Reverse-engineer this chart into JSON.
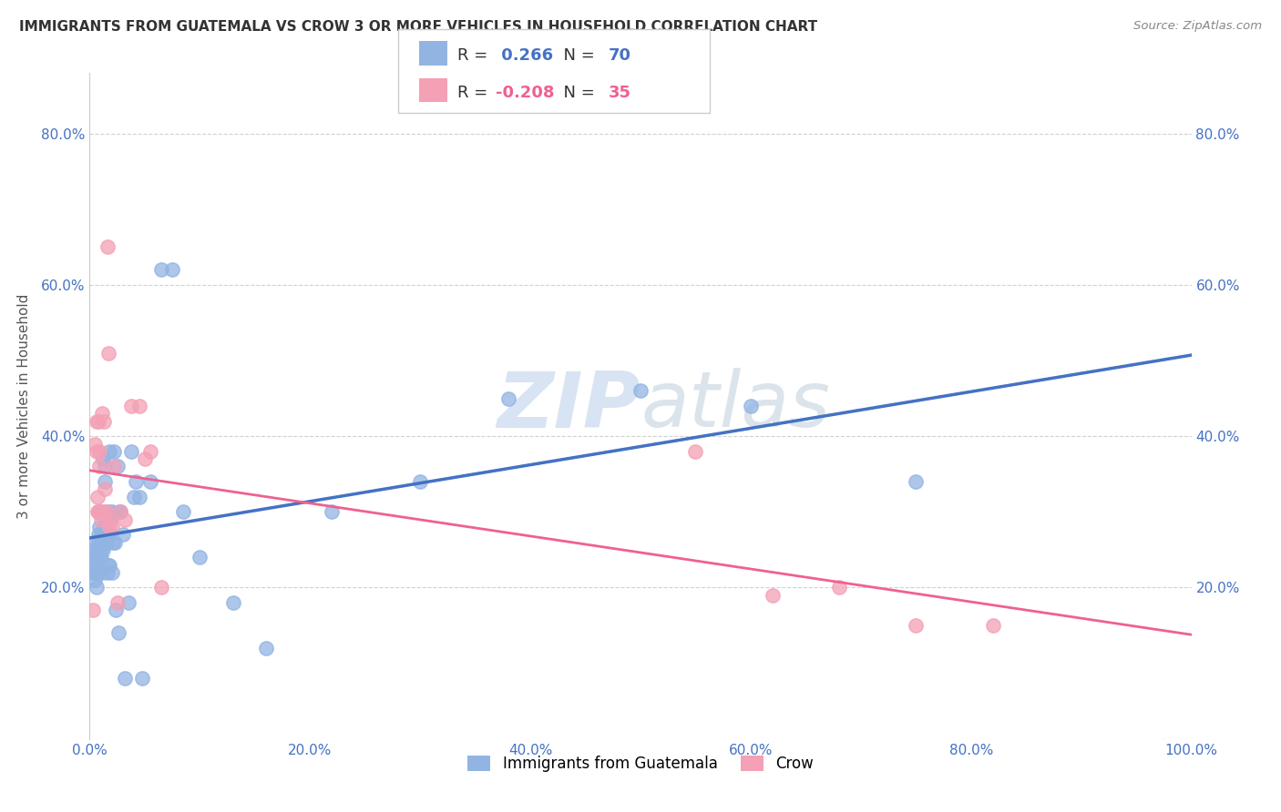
{
  "title": "IMMIGRANTS FROM GUATEMALA VS CROW 3 OR MORE VEHICLES IN HOUSEHOLD CORRELATION CHART",
  "source": "Source: ZipAtlas.com",
  "ylabel": "3 or more Vehicles in Household",
  "legend_blue_label": "Immigrants from Guatemala",
  "legend_pink_label": "Crow",
  "r_blue": 0.266,
  "n_blue": 70,
  "r_pink": -0.208,
  "n_pink": 35,
  "blue_color": "#92b4e3",
  "pink_color": "#f4a0b5",
  "blue_line_color": "#4472c4",
  "pink_line_color": "#f06090",
  "trendline_dash_color": "#90b0e0",
  "background_color": "#ffffff",
  "grid_color": "#cccccc",
  "blue_scatter_x": [
    0.001,
    0.002,
    0.003,
    0.004,
    0.005,
    0.005,
    0.006,
    0.006,
    0.006,
    0.007,
    0.007,
    0.007,
    0.008,
    0.008,
    0.008,
    0.009,
    0.009,
    0.009,
    0.01,
    0.01,
    0.01,
    0.011,
    0.011,
    0.012,
    0.012,
    0.013,
    0.013,
    0.014,
    0.014,
    0.015,
    0.015,
    0.016,
    0.016,
    0.017,
    0.017,
    0.018,
    0.018,
    0.019,
    0.019,
    0.02,
    0.02,
    0.021,
    0.022,
    0.023,
    0.024,
    0.025,
    0.026,
    0.027,
    0.028,
    0.03,
    0.032,
    0.035,
    0.038,
    0.04,
    0.042,
    0.045,
    0.048,
    0.055,
    0.065,
    0.075,
    0.085,
    0.1,
    0.13,
    0.16,
    0.22,
    0.3,
    0.38,
    0.5,
    0.6,
    0.75
  ],
  "blue_scatter_y": [
    0.24,
    0.22,
    0.25,
    0.23,
    0.21,
    0.26,
    0.22,
    0.24,
    0.2,
    0.25,
    0.23,
    0.22,
    0.25,
    0.27,
    0.26,
    0.24,
    0.28,
    0.3,
    0.27,
    0.25,
    0.24,
    0.22,
    0.26,
    0.37,
    0.25,
    0.28,
    0.3,
    0.34,
    0.36,
    0.26,
    0.28,
    0.27,
    0.22,
    0.3,
    0.23,
    0.23,
    0.38,
    0.27,
    0.29,
    0.22,
    0.3,
    0.26,
    0.38,
    0.26,
    0.17,
    0.36,
    0.14,
    0.3,
    0.3,
    0.27,
    0.08,
    0.18,
    0.38,
    0.32,
    0.34,
    0.32,
    0.08,
    0.34,
    0.62,
    0.62,
    0.3,
    0.24,
    0.18,
    0.12,
    0.3,
    0.34,
    0.45,
    0.46,
    0.44,
    0.34
  ],
  "pink_scatter_x": [
    0.003,
    0.005,
    0.006,
    0.006,
    0.007,
    0.007,
    0.008,
    0.008,
    0.009,
    0.009,
    0.01,
    0.011,
    0.012,
    0.013,
    0.014,
    0.015,
    0.016,
    0.017,
    0.018,
    0.019,
    0.02,
    0.022,
    0.025,
    0.028,
    0.032,
    0.038,
    0.045,
    0.05,
    0.055,
    0.065,
    0.55,
    0.62,
    0.68,
    0.75,
    0.82
  ],
  "pink_scatter_y": [
    0.17,
    0.39,
    0.38,
    0.42,
    0.3,
    0.32,
    0.42,
    0.3,
    0.36,
    0.38,
    0.29,
    0.43,
    0.3,
    0.42,
    0.33,
    0.3,
    0.65,
    0.51,
    0.28,
    0.29,
    0.28,
    0.36,
    0.18,
    0.3,
    0.29,
    0.44,
    0.44,
    0.37,
    0.38,
    0.2,
    0.38,
    0.19,
    0.2,
    0.15,
    0.15
  ],
  "xlim": [
    0.0,
    1.0
  ],
  "ylim": [
    0.0,
    0.88
  ],
  "xticks": [
    0.0,
    0.2,
    0.4,
    0.6,
    0.8,
    1.0
  ],
  "yticks": [
    0.0,
    0.2,
    0.4,
    0.6,
    0.8
  ],
  "xtick_labels": [
    "0.0%",
    "20.0%",
    "40.0%",
    "60.0%",
    "80.0%",
    "100.0%"
  ],
  "ytick_labels": [
    "",
    "20.0%",
    "40.0%",
    "60.0%",
    "80.0%"
  ],
  "tick_color": "#4472c4",
  "title_fontsize": 11,
  "axis_fontsize": 11,
  "ylabel_fontsize": 11
}
